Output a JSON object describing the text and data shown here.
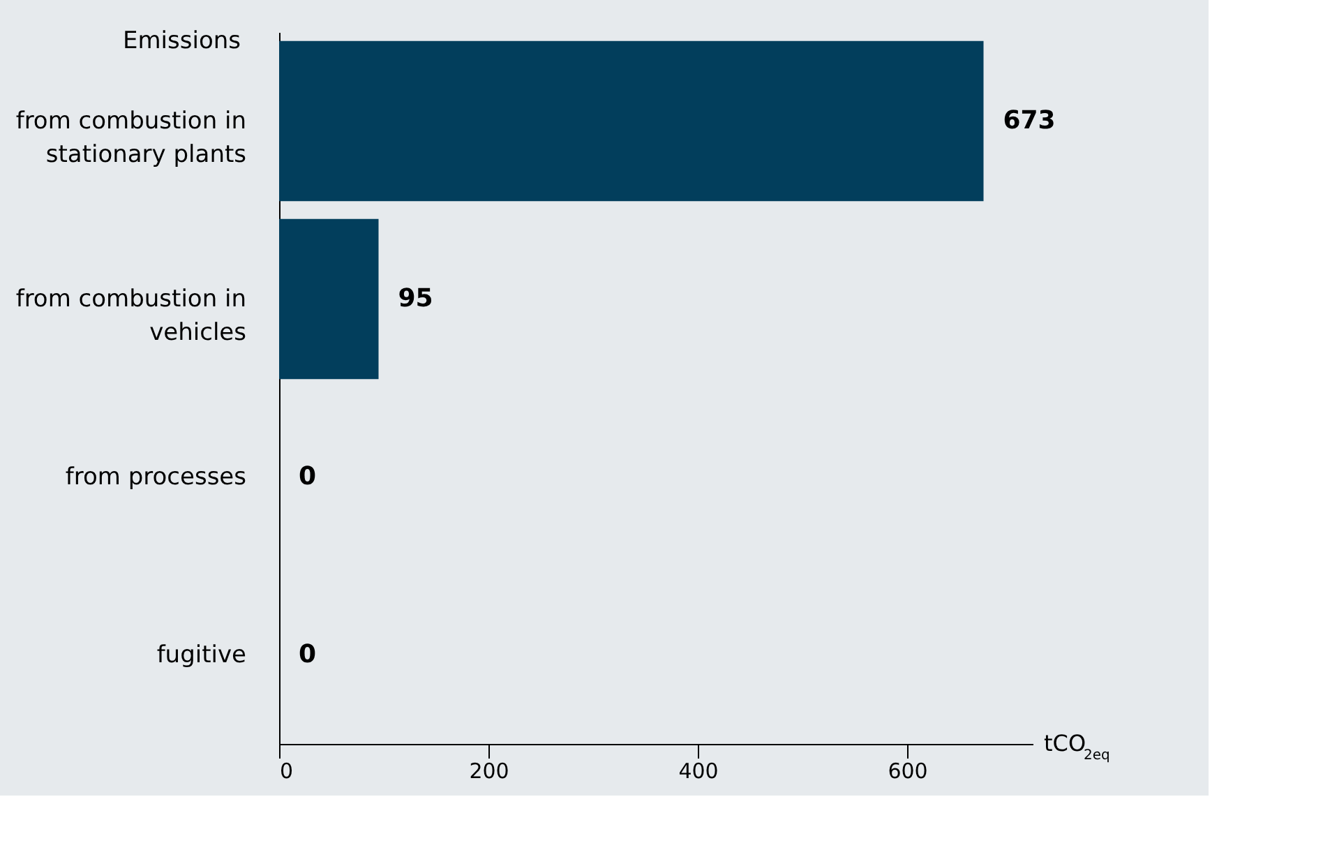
{
  "chart_data": {
    "type": "bar",
    "orientation": "horizontal",
    "ylabel": "Emissions",
    "xlabel": "tCO$_{2eq}$",
    "categories": [
      "from combustion in stationary plants",
      "from combustion in vehicles",
      "from processes",
      "fugitive"
    ],
    "values": [
      673,
      95,
      0,
      0
    ],
    "color": "#023e5c",
    "data_labels": true,
    "xlim": [
      0,
      720
    ],
    "xticks": [
      0,
      200,
      400,
      600
    ],
    "grid": false
  }
}
